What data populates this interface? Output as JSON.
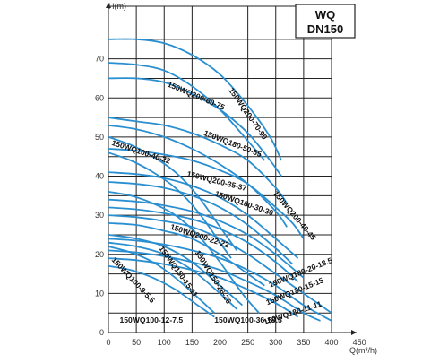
{
  "chart_data": {
    "type": "line",
    "title": "WQ",
    "subtitle": "DN150",
    "xlabel": "Q(m³/h)",
    "ylabel": "H(m)",
    "xlim": [
      0,
      450
    ],
    "ylim": [
      0,
      80
    ],
    "x_ticks": [
      "0",
      "50",
      "100",
      "150",
      "200",
      "250",
      "300",
      "350",
      "400",
      "450"
    ],
    "y_ticks": [
      "0",
      "10",
      "20",
      "30",
      "40",
      "50",
      "60",
      "70"
    ],
    "grid": true,
    "colors": {
      "curve": "#2a8fd0",
      "grid": "#222222",
      "frame": "#222222"
    },
    "series": [
      {
        "name": "150WQ200-70-90",
        "points": [
          [
            0,
            75
          ],
          [
            50,
            75
          ],
          [
            100,
            74
          ],
          [
            150,
            71
          ],
          [
            200,
            66
          ],
          [
            250,
            58
          ],
          [
            290,
            50
          ],
          [
            310,
            44
          ]
        ]
      },
      {
        "name": "150WQ200-60-75",
        "points": [
          [
            0,
            65
          ],
          [
            50,
            65
          ],
          [
            100,
            64
          ],
          [
            150,
            61
          ],
          [
            200,
            57
          ],
          [
            250,
            51
          ],
          [
            290,
            44
          ],
          [
            310,
            40
          ]
        ]
      },
      {
        "name": "150WQ200-70-90",
        "points": [
          [
            0,
            69
          ],
          [
            50,
            68.5
          ],
          [
            100,
            67
          ],
          [
            150,
            63
          ],
          [
            200,
            57
          ],
          [
            250,
            49
          ],
          [
            280,
            44
          ]
        ]
      },
      {
        "name": "150WQ180-50-55",
        "points": [
          [
            0,
            55
          ],
          [
            50,
            54
          ],
          [
            100,
            53
          ],
          [
            150,
            51
          ],
          [
            200,
            48
          ],
          [
            250,
            44
          ],
          [
            300,
            37
          ],
          [
            320,
            33
          ]
        ]
      },
      {
        "name": "150WQ180-50-55",
        "points": [
          [
            0,
            53
          ],
          [
            50,
            52
          ],
          [
            100,
            50
          ],
          [
            150,
            47
          ],
          [
            200,
            43
          ],
          [
            250,
            38
          ],
          [
            300,
            31
          ],
          [
            320,
            27
          ]
        ]
      },
      {
        "name": "150WQ200-40-45",
        "points": [
          [
            0,
            47
          ],
          [
            50,
            46.5
          ],
          [
            100,
            45.5
          ],
          [
            150,
            44
          ],
          [
            200,
            41.5
          ],
          [
            250,
            38
          ],
          [
            300,
            32
          ],
          [
            330,
            28
          ],
          [
            350,
            24
          ]
        ]
      },
      {
        "name": "150WQ100-40-22",
        "points": [
          [
            0,
            50
          ],
          [
            40,
            48
          ],
          [
            80,
            45
          ],
          [
            120,
            41
          ],
          [
            160,
            35
          ],
          [
            200,
            27
          ],
          [
            230,
            21
          ]
        ]
      },
      {
        "name": "150WQ100-40-22",
        "points": [
          [
            0,
            46
          ],
          [
            40,
            44
          ],
          [
            80,
            41
          ],
          [
            120,
            37
          ],
          [
            160,
            31
          ],
          [
            200,
            23
          ],
          [
            220,
            19
          ]
        ]
      },
      {
        "name": "150WQ200-35-37",
        "points": [
          [
            0,
            41
          ],
          [
            50,
            40.5
          ],
          [
            100,
            39.5
          ],
          [
            150,
            37.5
          ],
          [
            200,
            34.5
          ],
          [
            250,
            30
          ],
          [
            300,
            24
          ],
          [
            340,
            19
          ]
        ]
      },
      {
        "name": "150WQ200-35-37",
        "points": [
          [
            0,
            38.5
          ],
          [
            50,
            38
          ],
          [
            100,
            37
          ],
          [
            150,
            35
          ],
          [
            200,
            32
          ],
          [
            250,
            27.5
          ],
          [
            300,
            21.5
          ],
          [
            330,
            17.5
          ]
        ]
      },
      {
        "name": "150WQ180-30-30",
        "points": [
          [
            0,
            34
          ],
          [
            50,
            33.5
          ],
          [
            100,
            32.5
          ],
          [
            150,
            31
          ],
          [
            200,
            28.5
          ],
          [
            250,
            25
          ],
          [
            300,
            20
          ],
          [
            350,
            14
          ]
        ]
      },
      {
        "name": "150WQ180-30-30",
        "points": [
          [
            0,
            32
          ],
          [
            50,
            31.5
          ],
          [
            100,
            30.5
          ],
          [
            150,
            29
          ],
          [
            200,
            26.5
          ],
          [
            250,
            23
          ],
          [
            300,
            18
          ],
          [
            340,
            13
          ]
        ]
      },
      {
        "name": "150WQ200-22-22",
        "points": [
          [
            0,
            30
          ],
          [
            50,
            29.5
          ],
          [
            100,
            28.5
          ],
          [
            150,
            27
          ],
          [
            200,
            24
          ],
          [
            250,
            20
          ],
          [
            300,
            15
          ],
          [
            360,
            9
          ],
          [
            400,
            5
          ]
        ]
      },
      {
        "name": "150WQ150-26-26",
        "points": [
          [
            0,
            28
          ],
          [
            50,
            27.5
          ],
          [
            100,
            26
          ],
          [
            150,
            24
          ],
          [
            200,
            20
          ],
          [
            250,
            15
          ],
          [
            280,
            12
          ]
        ]
      },
      {
        "name": "150WQ180-20-18.5",
        "points": [
          [
            0,
            24
          ],
          [
            50,
            23.5
          ],
          [
            100,
            22.5
          ],
          [
            150,
            21
          ],
          [
            200,
            19
          ],
          [
            250,
            16
          ],
          [
            300,
            12
          ],
          [
            350,
            7
          ],
          [
            400,
            3
          ]
        ]
      },
      {
        "name": "150WQ180-15-15",
        "points": [
          [
            0,
            21
          ],
          [
            50,
            20.5
          ],
          [
            100,
            19.5
          ],
          [
            150,
            18
          ],
          [
            200,
            16
          ],
          [
            250,
            13
          ],
          [
            300,
            9.5
          ],
          [
            350,
            5
          ],
          [
            380,
            3
          ]
        ]
      },
      {
        "name": "150WQ180-11-11",
        "points": [
          [
            0,
            19
          ],
          [
            50,
            18.5
          ],
          [
            100,
            17.5
          ],
          [
            150,
            16
          ],
          [
            200,
            14
          ],
          [
            250,
            11
          ],
          [
            300,
            7.5
          ],
          [
            340,
            4
          ]
        ]
      },
      {
        "name": "150WQ100-9-5.5",
        "points": [
          [
            0,
            22
          ],
          [
            40,
            20.5
          ],
          [
            80,
            18
          ],
          [
            120,
            14
          ],
          [
            160,
            9
          ],
          [
            190,
            5
          ]
        ]
      },
      {
        "name": "150WQ150-15-11",
        "points": [
          [
            0,
            25
          ],
          [
            50,
            24
          ],
          [
            100,
            22
          ],
          [
            150,
            18
          ],
          [
            200,
            12
          ],
          [
            240,
            7
          ]
        ]
      },
      {
        "name": "150WQ150-15-11",
        "points": [
          [
            0,
            23
          ],
          [
            50,
            22
          ],
          [
            100,
            20
          ],
          [
            150,
            16
          ],
          [
            200,
            10
          ],
          [
            230,
            6
          ]
        ]
      },
      {
        "name": "150WQ100-12-7.5",
        "points": [
          [
            0,
            17
          ],
          [
            40,
            16
          ],
          [
            80,
            14
          ],
          [
            120,
            11
          ],
          [
            160,
            7
          ],
          [
            190,
            4
          ]
        ]
      },
      {
        "name": "150WQ100-36-18.5",
        "points": [
          [
            0,
            36
          ],
          [
            40,
            35
          ],
          [
            80,
            33
          ],
          [
            120,
            30
          ],
          [
            160,
            25
          ],
          [
            200,
            18
          ],
          [
            240,
            10
          ],
          [
            270,
            5
          ]
        ]
      }
    ],
    "curve_labels": [
      {
        "text": "150WQ200-70-90",
        "x": 215,
        "y": 62,
        "angle": 55
      },
      {
        "text": "150WQ200-60-75",
        "x": 105,
        "y": 63,
        "angle": 23
      },
      {
        "text": "150WQ180-50-55",
        "x": 170,
        "y": 50.5,
        "angle": 21
      },
      {
        "text": "150WQ100-40-22",
        "x": 5,
        "y": 48,
        "angle": 18
      },
      {
        "text": "150WQ200-35-37",
        "x": 140,
        "y": 40,
        "angle": 14
      },
      {
        "text": "150WQ200-40-45",
        "x": 295,
        "y": 35.5,
        "angle": 50
      },
      {
        "text": "150WQ180-30-30",
        "x": 190,
        "y": 35,
        "angle": 19
      },
      {
        "text": "150WQ200-22-22",
        "x": 110,
        "y": 26.5,
        "angle": 18
      },
      {
        "text": "150WQ150-26-26",
        "x": 155,
        "y": 20.5,
        "angle": 58
      },
      {
        "text": "150WQ100-9-5.5",
        "x": 5,
        "y": 18.5,
        "angle": 47
      },
      {
        "text": "150WQ150-15-11",
        "x": 90,
        "y": 21.5,
        "angle": 54
      },
      {
        "text": "150WQ180-20-18.5",
        "x": 290,
        "y": 11.5,
        "angle": -22
      },
      {
        "text": "150WQ180-15-15",
        "x": 285,
        "y": 7,
        "angle": -22
      },
      {
        "text": "150WQ180-11-11",
        "x": 280,
        "y": 2,
        "angle": -18
      },
      {
        "text": "150WQ100-12-7.5",
        "x": 20,
        "y": 2.5,
        "angle": 0
      },
      {
        "text": "150WQ100-36-18.5",
        "x": 190,
        "y": 2.5,
        "angle": 0
      }
    ]
  }
}
